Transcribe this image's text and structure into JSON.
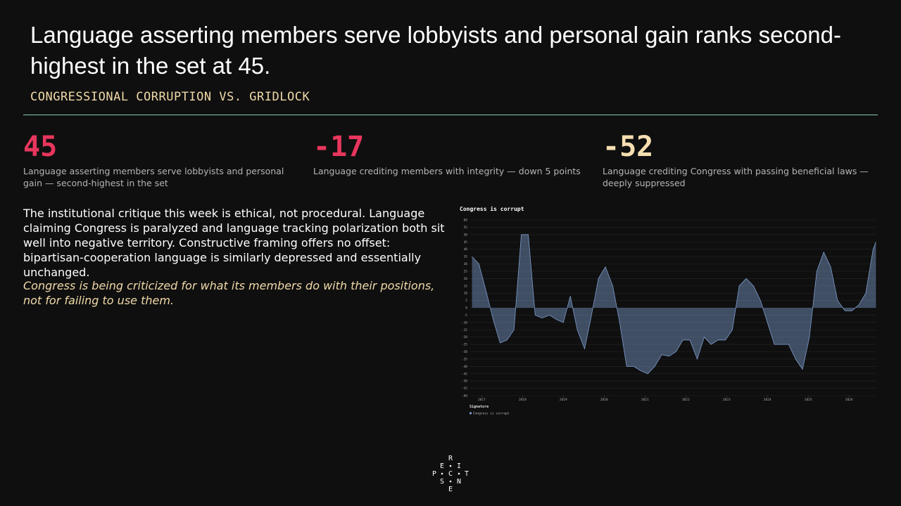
{
  "header": {
    "title": "Language asserting members serve lobbyists and personal gain ranks second-highest in the set at 45.",
    "subtitle": "CONGRESSIONAL CORRUPTION VS. GRIDLOCK"
  },
  "stats": [
    {
      "value": "45",
      "caption": "Language asserting members serve lobbyists and personal gain — second-highest in the set"
    },
    {
      "value": "-17",
      "caption": "Language crediting members with integrity — down 5 points"
    },
    {
      "value": "-52",
      "caption": "Language crediting Congress with passing beneficial laws — deeply suppressed"
    }
  ],
  "body": {
    "paragraph": "The institutional critique this week is ethical, not procedural. Language claiming Congress is paralyzed and language tracking polarization both sit well into negative territory. Constructive framing offers no offset: bipartisan-cooperation language is similarly depressed and essentially unchanged.",
    "quote": "Congress is being criticized for what its members do with their positions, not for failing to use them."
  },
  "logo": [
    "R",
    "E",
    "I",
    "P",
    "C",
    "T",
    "S",
    "N",
    "E"
  ],
  "chart_data": {
    "type": "area",
    "title": "Congress is corrupt",
    "legend_title": "Signature",
    "x": [
      2016.76,
      2016.93,
      2017.1,
      2017.28,
      2017.45,
      2017.62,
      2017.79,
      2017.97,
      2018.14,
      2018.31,
      2018.48,
      2018.66,
      2018.83,
      2019.0,
      2019.17,
      2019.34,
      2019.52,
      2019.69,
      2019.86,
      2020.03,
      2020.21,
      2020.38,
      2020.55,
      2020.72,
      2020.9,
      2021.07,
      2021.24,
      2021.41,
      2021.59,
      2021.76,
      2021.93,
      2022.1,
      2022.28,
      2022.45,
      2022.62,
      2022.79,
      2022.97,
      2023.14,
      2023.31,
      2023.48,
      2023.66,
      2023.83,
      2024.0,
      2024.17,
      2024.34,
      2024.52,
      2024.69,
      2024.86,
      2025.03,
      2025.21,
      2025.38,
      2025.55,
      2025.72,
      2025.9,
      2026.07,
      2026.24,
      2026.41,
      2026.59,
      2026.66
    ],
    "series": [
      {
        "name": "Congress is corrupt",
        "color": "#7d9ccc",
        "values": [
          35,
          30,
          12,
          -8,
          -24,
          -22,
          -15,
          50,
          50,
          -5,
          -7,
          -5,
          -8,
          -10,
          8,
          -15,
          -28,
          -5,
          20,
          28,
          15,
          -10,
          -40,
          -40,
          -43,
          -45,
          -40,
          -32,
          -33,
          -30,
          -22,
          -22,
          -35,
          -20,
          -25,
          -22,
          -22,
          -15,
          15,
          20,
          15,
          5,
          -10,
          -25,
          -25,
          -25,
          -35,
          -42,
          -20,
          25,
          38,
          28,
          5,
          -2,
          -2,
          2,
          10,
          40,
          45
        ]
      }
    ],
    "xlim": [
      2016.7,
      2026.67
    ],
    "xticks": [
      2017,
      2018,
      2019,
      2020,
      2021,
      2022,
      2023,
      2024,
      2025,
      2026
    ],
    "ylim": [
      -60,
      60
    ],
    "yticks": [
      60,
      55,
      50,
      45,
      40,
      35,
      30,
      25,
      20,
      15,
      10,
      5,
      0,
      -5,
      -10,
      -15,
      -20,
      -25,
      -30,
      -35,
      -40,
      -45,
      -50,
      -55,
      -60
    ],
    "grid": true
  }
}
